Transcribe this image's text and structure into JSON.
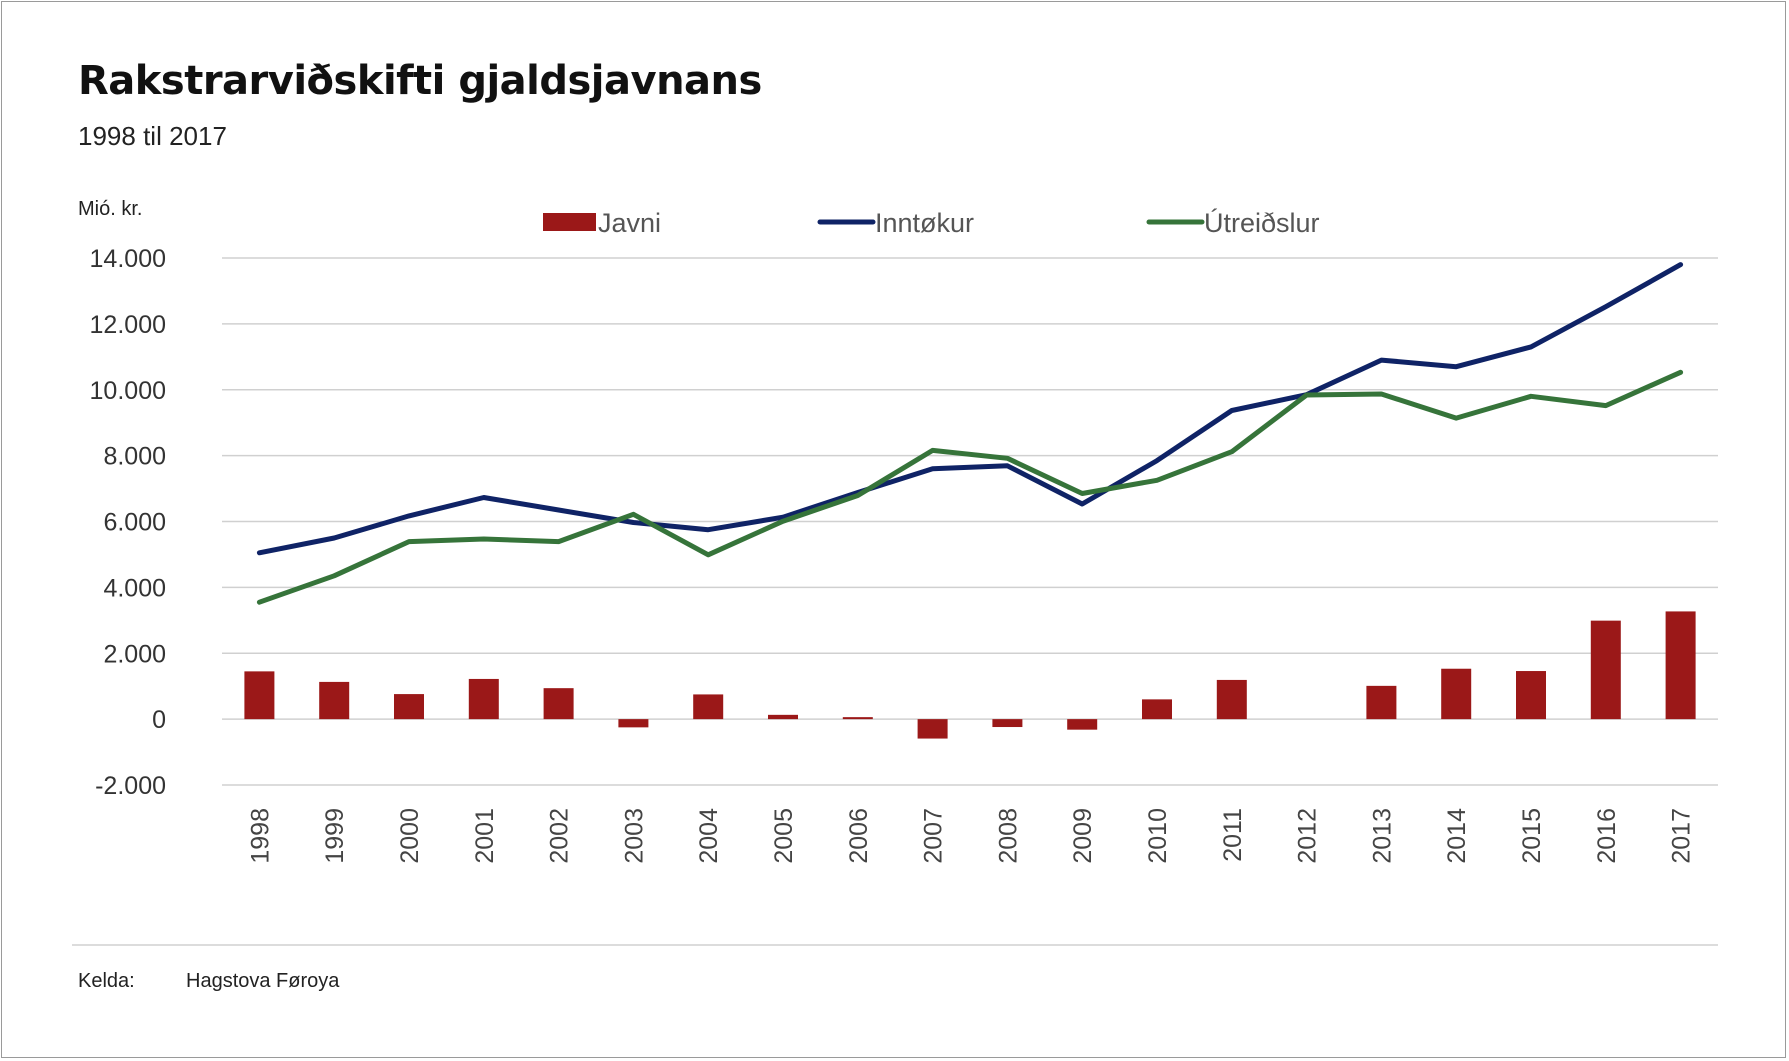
{
  "title": "Rakstrarviðskifti gjaldsjavnans",
  "subtitle": "1998 til 2017",
  "unit_label": "Mió. kr.",
  "source": {
    "label": "Kelda:",
    "value": "Hagstova Føroya"
  },
  "colors": {
    "javni": "#9b1818",
    "inntokur": "#0f2366",
    "utreidslur": "#36743a",
    "grid": "#d0d0d0",
    "axis_text": "#444444"
  },
  "chart_data": {
    "type": "bar",
    "title": "Rakstrarviðskifti gjaldsjavnans",
    "subtitle": "1998 til 2017",
    "ylabel": "Mió. kr.",
    "xlabel": "",
    "ylim": [
      -2000,
      14000
    ],
    "yticks": [
      14000,
      12000,
      10000,
      8000,
      6000,
      4000,
      2000,
      0,
      -2000
    ],
    "ytick_labels": [
      "14.000",
      "12.000",
      "10.000",
      "8.000",
      "6.000",
      "4.000",
      "2.000",
      "0",
      "-2.000"
    ],
    "grid": true,
    "legend_position": "top",
    "categories": [
      "1998",
      "1999",
      "2000",
      "2001",
      "2002",
      "2003",
      "2004",
      "2005",
      "2006",
      "2007",
      "2008",
      "2009",
      "2010",
      "2011",
      "2012",
      "2013",
      "2014",
      "2015",
      "2016",
      "2017"
    ],
    "series": [
      {
        "name": "Javni",
        "type": "bar",
        "color": "#9b1818",
        "values": [
          1450,
          1130,
          760,
          1220,
          940,
          -250,
          750,
          130,
          60,
          -590,
          -240,
          -320,
          600,
          1190,
          0,
          1010,
          1530,
          1460,
          2990,
          3270
        ]
      },
      {
        "name": "Inntøkur",
        "type": "line",
        "color": "#0f2366",
        "values": [
          5050,
          5500,
          6170,
          6730,
          6350,
          5970,
          5750,
          6130,
          6880,
          7600,
          7690,
          6530,
          7850,
          9370,
          9850,
          10900,
          10700,
          11300,
          12520,
          13800
        ]
      },
      {
        "name": "Útreiðslur",
        "type": "line",
        "color": "#36743a",
        "values": [
          3550,
          4350,
          5390,
          5470,
          5390,
          6220,
          4990,
          6010,
          6790,
          8160,
          7920,
          6850,
          7250,
          8120,
          9840,
          9870,
          9140,
          9800,
          9520,
          10530
        ]
      }
    ]
  }
}
